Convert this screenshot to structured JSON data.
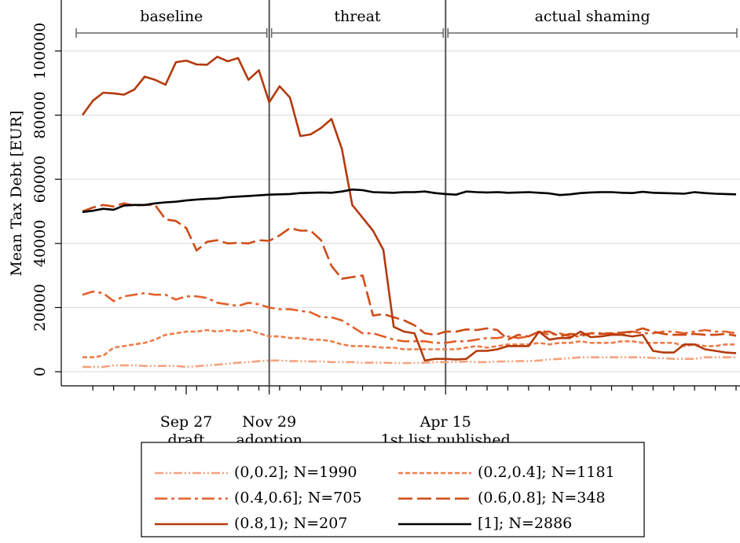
{
  "chart_data": {
    "type": "line",
    "ylabel": "Mean Tax Debt [EUR]",
    "categories": [
      null,
      null,
      null,
      null,
      null,
      null,
      null,
      null,
      null,
      null,
      "Sep 27",
      null,
      null,
      null,
      null,
      null,
      null,
      null,
      "Nov 29",
      null,
      null,
      null,
      null,
      null,
      null,
      null,
      null,
      null,
      null,
      null,
      null,
      null,
      null,
      null,
      null,
      "Apr 15",
      null,
      null,
      null,
      null,
      null,
      null,
      null,
      null,
      null,
      null,
      null,
      null,
      null,
      null,
      null,
      null,
      null,
      null,
      null,
      null,
      null,
      null,
      null,
      null,
      null,
      null,
      null,
      null
    ],
    "annotations": [
      {
        "at": "Sep 27",
        "label": "draft"
      },
      {
        "at": "Nov 29",
        "label": "adoption"
      },
      {
        "at": "Apr 15",
        "label": "1st list published"
      }
    ],
    "vlines": [
      "Nov 29",
      "Apr 15"
    ],
    "periods": [
      {
        "label": "baseline"
      },
      {
        "label": "threat"
      },
      {
        "label": "actual shaming"
      }
    ],
    "ylim": [
      -4400,
      115900
    ],
    "yticks": [
      0,
      20000,
      40000,
      60000,
      80000,
      100000
    ],
    "grid": true,
    "legend": "bottom",
    "series": [
      {
        "name": "(0,0.2]; N=1990",
        "color": "#f4a27e",
        "dash": "11 3 2 3 2 3",
        "values": [
          1500,
          1500,
          1500,
          2000,
          2000,
          2000,
          1800,
          1800,
          1800,
          1800,
          1500,
          1700,
          2000,
          2200,
          2500,
          2800,
          3000,
          3300,
          3500,
          3500,
          3300,
          3300,
          3200,
          3200,
          3000,
          3000,
          3000,
          2800,
          2800,
          2800,
          2700,
          2700,
          2700,
          2800,
          3000,
          3000,
          3000,
          3200,
          3000,
          3000,
          3200,
          3200,
          3300,
          3300,
          3500,
          3800,
          4000,
          4200,
          4500,
          4500,
          4500,
          4500,
          4500,
          4500,
          4500,
          4300,
          4200,
          4000,
          4000,
          4000,
          4500,
          4500,
          4500,
          4500
        ]
      },
      {
        "name": "(0.2,0.4]; N=1181",
        "color": "#ee7d4a",
        "dash": "6 3",
        "values": [
          4500,
          4500,
          5000,
          7500,
          8000,
          8500,
          9000,
          10000,
          11500,
          12000,
          12500,
          12500,
          13000,
          12500,
          13000,
          12500,
          13000,
          12000,
          11000,
          11000,
          10500,
          10500,
          10000,
          10000,
          9500,
          8500,
          8000,
          8000,
          7800,
          7500,
          7500,
          7000,
          7000,
          7000,
          7000,
          7000,
          7000,
          7500,
          8000,
          7500,
          8000,
          8500,
          8500,
          8500,
          9000,
          8500,
          9000,
          9000,
          9500,
          9000,
          9000,
          9000,
          9500,
          9500,
          9000,
          9000,
          9000,
          9000,
          8000,
          8500,
          8000,
          8000,
          8500,
          8500
        ]
      },
      {
        "name": "(0.4,0.6]; N=705",
        "color": "#e2602a",
        "dash": "16 5 4 5",
        "values": [
          24000,
          25000,
          24500,
          22000,
          23500,
          24000,
          24500,
          24000,
          24000,
          22500,
          23500,
          23500,
          23000,
          21500,
          21000,
          20500,
          21500,
          21000,
          20000,
          19500,
          19500,
          19000,
          18500,
          17000,
          17000,
          16000,
          14000,
          12000,
          12000,
          11000,
          10000,
          9500,
          9500,
          9500,
          9000,
          9000,
          9500,
          9500,
          10000,
          10500,
          10500,
          11000,
          10500,
          11000,
          12500,
          11500,
          12000,
          11000,
          11000,
          12000,
          12000,
          12000,
          11500,
          12500,
          12000,
          12000,
          12500,
          12500,
          12000,
          12500,
          13000,
          12500,
          12500,
          12000
        ]
      },
      {
        "name": "(0.6,0.8]; N=348",
        "color": "#cf4c16",
        "dash": "18 6",
        "values": [
          50000,
          51200,
          52000,
          51500,
          52500,
          51800,
          52000,
          52000,
          47500,
          47000,
          44800,
          37800,
          40500,
          41000,
          40000,
          40200,
          40000,
          41000,
          40800,
          42500,
          44800,
          44000,
          44000,
          41000,
          33000,
          29000,
          29500,
          30000,
          17500,
          18000,
          17000,
          16000,
          14500,
          12000,
          11500,
          12500,
          12500,
          13200,
          13000,
          13500,
          13000,
          10000,
          11500,
          11000,
          12500,
          12500,
          11000,
          11800,
          11500,
          12000,
          11800,
          12000,
          12200,
          12500,
          13500,
          12500,
          11800,
          11500,
          11500,
          11800,
          11500,
          11500,
          11800,
          11200
        ]
      },
      {
        "name": "(0.8,1); N=207",
        "color": "#b33a0c",
        "dash": "none",
        "values": [
          80000,
          84500,
          87000,
          86800,
          86400,
          88000,
          92000,
          91000,
          89500,
          96500,
          97000,
          95800,
          95700,
          98200,
          96800,
          97800,
          91000,
          94000,
          84000,
          89000,
          85500,
          73500,
          74000,
          76000,
          78800,
          69500,
          52000,
          48000,
          44000,
          38000,
          14000,
          12500,
          12000,
          3500,
          4000,
          4000,
          3800,
          4000,
          6500,
          6500,
          7000,
          8000,
          8000,
          8000,
          12500,
          10000,
          10500,
          10500,
          12500,
          10800,
          11000,
          11500,
          11500,
          11000,
          11500,
          6500,
          6000,
          6000,
          8500,
          8500,
          7000,
          6500,
          6000,
          5800
        ]
      },
      {
        "name": "[1]; N=2886",
        "color": "#000000",
        "dash": "none",
        "values": [
          49800,
          50200,
          50800,
          50500,
          51800,
          52000,
          52000,
          52500,
          52800,
          53000,
          53400,
          53700,
          53900,
          54000,
          54400,
          54600,
          54800,
          55000,
          55200,
          55300,
          55400,
          55700,
          55800,
          55900,
          55800,
          56200,
          56800,
          56600,
          56000,
          55900,
          55800,
          56000,
          56000,
          56200,
          55700,
          55400,
          55200,
          56200,
          56000,
          55900,
          56000,
          55800,
          55900,
          56000,
          55800,
          55600,
          55100,
          55300,
          55700,
          55900,
          56000,
          56000,
          55800,
          55700,
          56100,
          55800,
          55700,
          55600,
          55500,
          56000,
          55700,
          55500,
          55400,
          55300
        ]
      }
    ]
  }
}
